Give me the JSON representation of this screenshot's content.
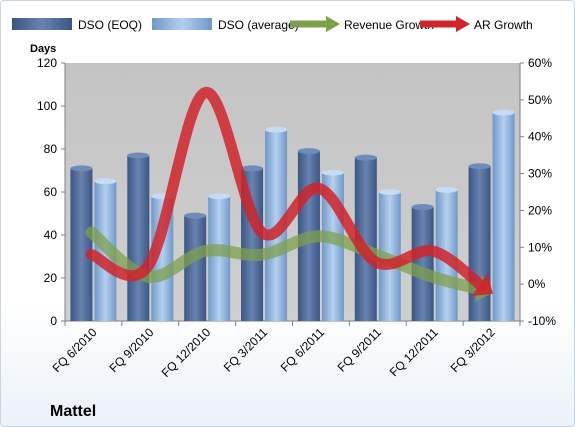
{
  "chart_data": {
    "type": "bar",
    "title": "",
    "company": "Mattel",
    "ylabel": "Days",
    "ylim": [
      0,
      120
    ],
    "yticks": [
      "0",
      "20",
      "40",
      "60",
      "80",
      "100",
      "120"
    ],
    "y2lim": [
      -10,
      60
    ],
    "y2ticks": [
      "-10%",
      "0%",
      "10%",
      "20%",
      "30%",
      "40%",
      "50%",
      "60%"
    ],
    "categories": [
      "FQ 6/2010",
      "FQ 9/2010",
      "FQ 12/2010",
      "FQ 3/2011",
      "FQ 6/2011",
      "FQ 9/2011",
      "FQ 12/2011",
      "FQ 3/2012"
    ],
    "series": [
      {
        "name": "DSO (EOQ)",
        "kind": "bar",
        "axis": "left",
        "color": "#4f6a96",
        "values": [
          71,
          77,
          49,
          71,
          79,
          76,
          53,
          72
        ]
      },
      {
        "name": "DSO (average)",
        "kind": "bar",
        "axis": "left",
        "color": "#8fb4de",
        "values": [
          65,
          58,
          58,
          89,
          69,
          60,
          61,
          97
        ]
      },
      {
        "name": "Revenue Growth",
        "kind": "arrow-line",
        "axis": "right",
        "color": "#7ea04d",
        "values": [
          14,
          2,
          9,
          8,
          13,
          8,
          2,
          -2
        ]
      },
      {
        "name": "AR Growth",
        "kind": "arrow-line",
        "axis": "right",
        "color": "#d0232a",
        "values": [
          8,
          5,
          52,
          14,
          26,
          6,
          9,
          -2
        ]
      }
    ],
    "legend": "top",
    "grid": false
  }
}
